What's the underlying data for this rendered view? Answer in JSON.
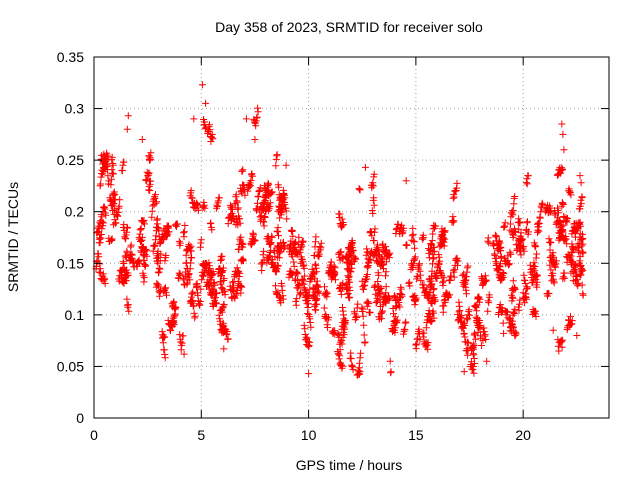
{
  "chart_data": {
    "type": "scatter",
    "title": "Day 358 of 2023, SRMTID for receiver solo",
    "xlabel": "GPS time / hours",
    "ylabel": "SRMTID / TECUs",
    "xlim": [
      0,
      24
    ],
    "ylim": [
      0,
      0.35
    ],
    "x_ticks": [
      0,
      5,
      10,
      15,
      20
    ],
    "x_tick_labels": [
      "0",
      "5",
      "10",
      "15",
      "20"
    ],
    "y_ticks": [
      0,
      0.05,
      0.1,
      0.15,
      0.2,
      0.25,
      0.3,
      0.35
    ],
    "y_tick_labels": [
      "0",
      "0.05",
      "0.1",
      "0.15",
      "0.2",
      "0.25",
      "0.3",
      "0.35"
    ],
    "grid": true,
    "marker": "+",
    "series_color": "#ff0000",
    "x_range_of_data": [
      0,
      22.8
    ],
    "profile": {
      "x": [
        0,
        0.5,
        1,
        1.5,
        2,
        2.5,
        3,
        3.5,
        4,
        4.5,
        5,
        5.5,
        6,
        6.5,
        7,
        7.5,
        8,
        8.5,
        9,
        9.5,
        10,
        10.5,
        11,
        11.5,
        12,
        12.5,
        13,
        13.5,
        14,
        14.5,
        15,
        15.5,
        16,
        16.5,
        17,
        17.5,
        18,
        18.5,
        19,
        19.5,
        20,
        20.5,
        21,
        21.5,
        22,
        22.5,
        22.8
      ],
      "y_center": [
        0.16,
        0.2,
        0.2,
        0.16,
        0.18,
        0.19,
        0.17,
        0.15,
        0.14,
        0.15,
        0.17,
        0.16,
        0.13,
        0.14,
        0.19,
        0.2,
        0.18,
        0.16,
        0.14,
        0.12,
        0.11,
        0.12,
        0.12,
        0.12,
        0.14,
        0.13,
        0.15,
        0.13,
        0.12,
        0.12,
        0.11,
        0.12,
        0.13,
        0.14,
        0.12,
        0.09,
        0.09,
        0.14,
        0.13,
        0.13,
        0.14,
        0.15,
        0.15,
        0.16,
        0.15,
        0.15,
        0.16
      ],
      "y_spread": [
        0.03,
        0.04,
        0.05,
        0.07,
        0.06,
        0.06,
        0.06,
        0.05,
        0.06,
        0.06,
        0.07,
        0.05,
        0.04,
        0.05,
        0.06,
        0.05,
        0.05,
        0.05,
        0.04,
        0.03,
        0.03,
        0.03,
        0.04,
        0.04,
        0.05,
        0.05,
        0.05,
        0.04,
        0.04,
        0.04,
        0.04,
        0.04,
        0.04,
        0.04,
        0.04,
        0.03,
        0.03,
        0.04,
        0.04,
        0.04,
        0.04,
        0.05,
        0.05,
        0.06,
        0.05,
        0.05,
        0.04
      ]
    },
    "approx_point_count": 2600,
    "notable_points": [
      {
        "x": 5.05,
        "y": 0.323
      },
      {
        "x": 5.2,
        "y": 0.305
      },
      {
        "x": 4.65,
        "y": 0.29
      },
      {
        "x": 1.6,
        "y": 0.293
      },
      {
        "x": 1.55,
        "y": 0.28
      },
      {
        "x": 7.1,
        "y": 0.29
      },
      {
        "x": 7.5,
        "y": 0.27
      },
      {
        "x": 2.25,
        "y": 0.27
      },
      {
        "x": 0.45,
        "y": 0.248
      },
      {
        "x": 8.95,
        "y": 0.245
      },
      {
        "x": 12.65,
        "y": 0.243
      },
      {
        "x": 14.55,
        "y": 0.23
      },
      {
        "x": 21.8,
        "y": 0.285
      },
      {
        "x": 21.85,
        "y": 0.275
      },
      {
        "x": 21.9,
        "y": 0.26
      },
      {
        "x": 22.65,
        "y": 0.235
      },
      {
        "x": 22.7,
        "y": 0.228
      },
      {
        "x": 10.0,
        "y": 0.043
      },
      {
        "x": 17.25,
        "y": 0.045
      },
      {
        "x": 17.6,
        "y": 0.05
      },
      {
        "x": 18.3,
        "y": 0.055
      },
      {
        "x": 21.4,
        "y": 0.085
      },
      {
        "x": 22.5,
        "y": 0.08
      },
      {
        "x": 6.05,
        "y": 0.067
      },
      {
        "x": 4.2,
        "y": 0.062
      }
    ]
  }
}
